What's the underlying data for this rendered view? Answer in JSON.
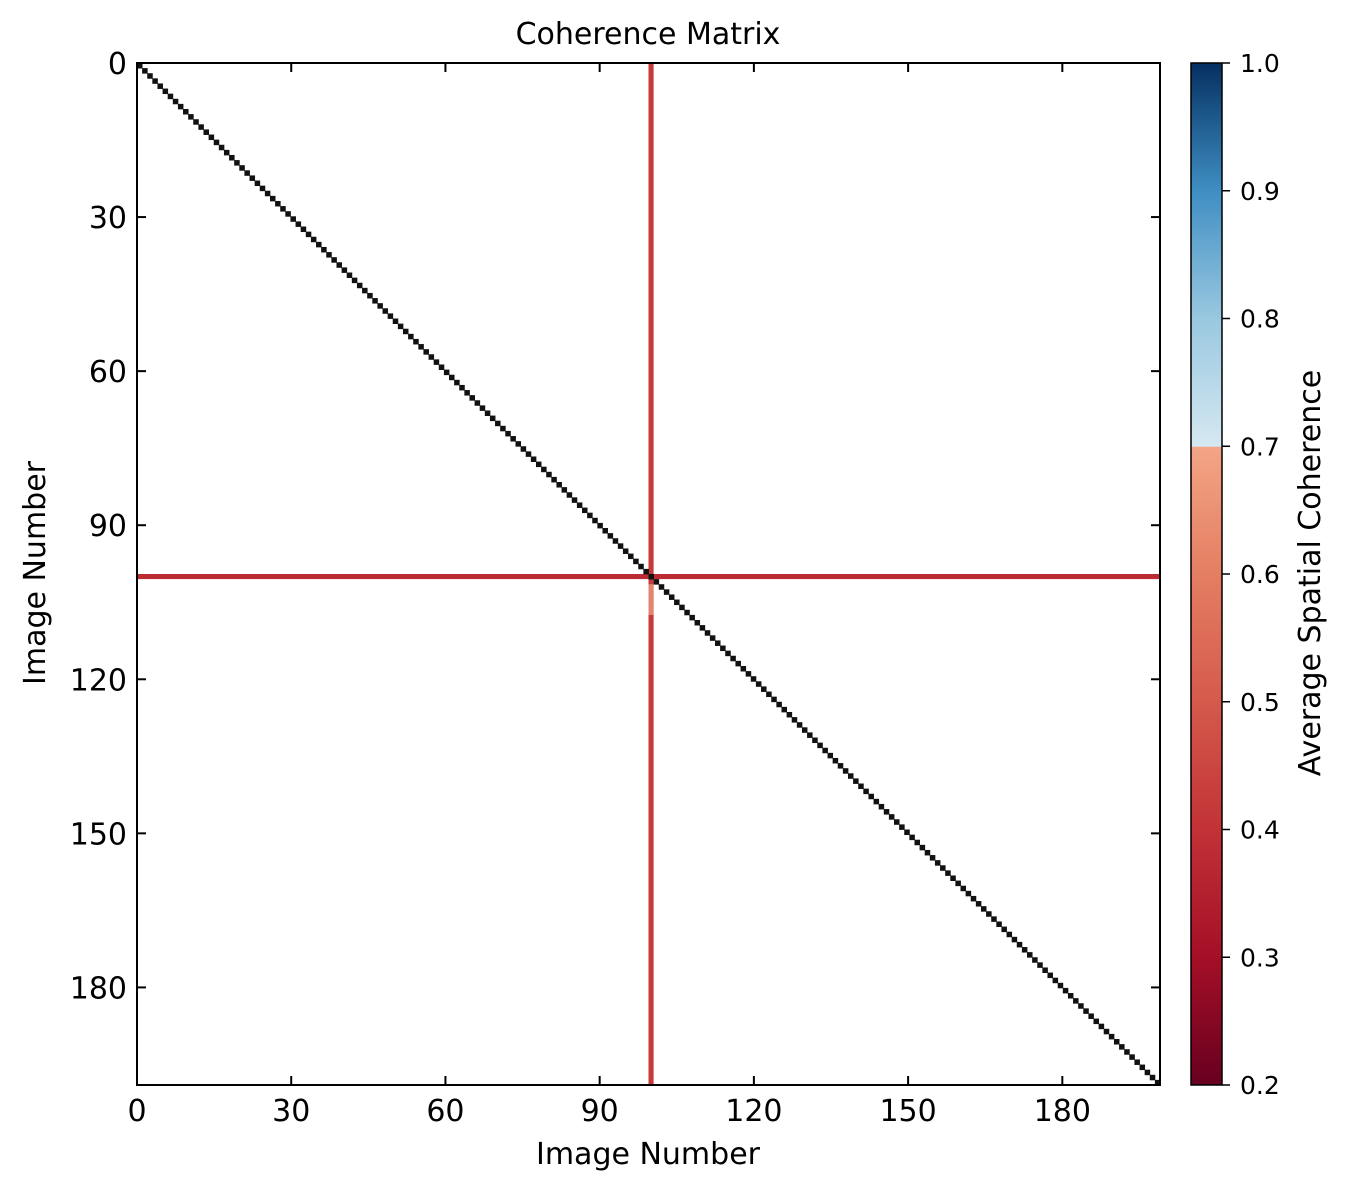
{
  "chart_data": {
    "type": "heatmap",
    "title": "Coherence Matrix",
    "xlabel": "Image Number",
    "ylabel": "Image Number",
    "n": 200,
    "x_ticks": [
      0,
      30,
      60,
      90,
      120,
      150,
      180
    ],
    "y_ticks": [
      0,
      30,
      60,
      90,
      120,
      150,
      180
    ],
    "xlim": [
      0,
      199
    ],
    "ylim": [
      0,
      199
    ],
    "y_inverted": true,
    "background_value": 1.0,
    "diagonal": {
      "description_value": "black",
      "color": "#111111"
    },
    "outlier_image": 100,
    "outlier_row_value": 0.38,
    "outlier_col_value": 0.42,
    "colorbar": {
      "label": "Average Spatial Coherence",
      "min": 0.2,
      "max": 1.0,
      "ticks": [
        0.2,
        0.3,
        0.4,
        0.5,
        0.6,
        0.7,
        0.8,
        0.9,
        1.0
      ],
      "tick_labels": [
        "0.2",
        "0.3",
        "0.4",
        "0.5",
        "0.6",
        "0.7",
        "0.8",
        "0.9",
        "1.0"
      ],
      "threshold": 0.7,
      "below_stops": [
        {
          "v": 0.2,
          "color": "#67001f"
        },
        {
          "v": 0.3,
          "color": "#a50f27"
        },
        {
          "v": 0.4,
          "color": "#c23236"
        },
        {
          "v": 0.5,
          "color": "#d55a4c"
        },
        {
          "v": 0.6,
          "color": "#e47e62"
        },
        {
          "v": 0.7,
          "color": "#f3a585"
        }
      ],
      "above_stops": [
        {
          "v": 0.7,
          "color": "#d6e8f1"
        },
        {
          "v": 0.8,
          "color": "#99c8e0"
        },
        {
          "v": 0.9,
          "color": "#3f8ec3"
        },
        {
          "v": 1.0,
          "color": "#053061"
        }
      ]
    }
  }
}
